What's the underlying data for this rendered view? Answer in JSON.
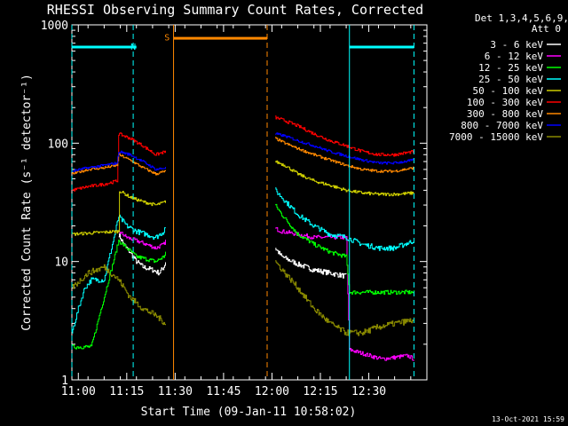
{
  "chart_data": {
    "type": "line",
    "title": "RHESSI Observing Summary Count Rates, Corrected",
    "xlabel": "Start Time (09-Jan-11 10:58:02)",
    "ylabel": "Corrected Count Rate (s⁻¹ detector⁻¹)",
    "y_scale": "log",
    "ylim": [
      1,
      1000
    ],
    "xlim_minutes_after_10_58_02": [
      0,
      110
    ],
    "x_ticks": [
      {
        "label": "11:00",
        "t": 2
      },
      {
        "label": "11:15",
        "t": 17
      },
      {
        "label": "11:30",
        "t": 32
      },
      {
        "label": "11:45",
        "t": 47
      },
      {
        "label": "12:00",
        "t": 62
      },
      {
        "label": "12:15",
        "t": 77
      },
      {
        "label": "12:30",
        "t": 92
      }
    ],
    "y_ticks": [
      {
        "label": "1",
        "v": 1
      },
      {
        "label": "10",
        "v": 10
      },
      {
        "label": "100",
        "v": 100
      },
      {
        "label": "1000",
        "v": 1000
      }
    ],
    "legend_header": [
      "Det 1,3,4,5,6,9,",
      "Att 0"
    ],
    "legend_position": "outside-right",
    "series": [
      {
        "name": "3 - 6 keV",
        "color": "#ffffff",
        "noise": 0.05,
        "points": [
          [
            14.5,
            17
          ],
          [
            16,
            14
          ],
          [
            18,
            12
          ],
          [
            20,
            10
          ],
          [
            22,
            9
          ],
          [
            25,
            8.5
          ],
          [
            27,
            8
          ],
          [
            28.5,
            9
          ],
          [
            29,
            10
          ]
        ],
        "points2": [
          [
            63,
            13
          ],
          [
            65,
            11
          ],
          [
            70,
            9.5
          ],
          [
            75,
            8.5
          ],
          [
            80,
            8
          ],
          [
            85,
            7.5
          ]
        ]
      },
      {
        "name": "6 - 12 keV",
        "color": "#ff00ff",
        "noise": 0.04,
        "points": [
          [
            14.5,
            18
          ],
          [
            17,
            16
          ],
          [
            20,
            15
          ],
          [
            23,
            14
          ],
          [
            26,
            13
          ],
          [
            28.5,
            14
          ],
          [
            29,
            15
          ]
        ],
        "points2": [
          [
            63,
            19
          ],
          [
            65,
            18
          ],
          [
            70,
            17
          ],
          [
            75,
            16
          ],
          [
            80,
            16
          ],
          [
            85,
            16
          ],
          [
            86,
            1.8
          ],
          [
            96,
            1.5
          ],
          [
            104,
            1.6
          ],
          [
            106,
            1.5
          ]
        ]
      },
      {
        "name": "12 - 25 keV",
        "color": "#00ff00",
        "noise": 0.04,
        "points": [
          [
            0,
            1.9
          ],
          [
            6,
            1.9
          ],
          [
            14.5,
            15
          ],
          [
            17,
            13
          ],
          [
            20,
            11
          ],
          [
            23,
            10.5
          ],
          [
            26,
            10
          ],
          [
            28.5,
            11
          ],
          [
            29,
            12
          ]
        ],
        "points2": [
          [
            63,
            30
          ],
          [
            65,
            25
          ],
          [
            70,
            17
          ],
          [
            75,
            14
          ],
          [
            80,
            12
          ],
          [
            85,
            11
          ],
          [
            86,
            5.5
          ],
          [
            96,
            5.5
          ],
          [
            106,
            5.5
          ]
        ]
      },
      {
        "name": "25 - 50 keV",
        "color": "#00ffff",
        "noise": 0.05,
        "points": [
          [
            0,
            2.5
          ],
          [
            2,
            4
          ],
          [
            4,
            6
          ],
          [
            6,
            7
          ],
          [
            10,
            7
          ],
          [
            14.5,
            24
          ],
          [
            17,
            20
          ],
          [
            20,
            18
          ],
          [
            23,
            17
          ],
          [
            26,
            16
          ],
          [
            28.5,
            18
          ],
          [
            29,
            20
          ]
        ],
        "points2": [
          [
            63,
            40
          ],
          [
            65,
            35
          ],
          [
            70,
            25
          ],
          [
            75,
            20
          ],
          [
            80,
            17
          ],
          [
            85,
            16
          ],
          [
            90,
            14
          ],
          [
            95,
            13
          ],
          [
            100,
            13
          ],
          [
            106,
            15
          ]
        ],
        "flat": [
          [
            0,
            650
          ],
          [
            20,
            650
          ],
          [
            86,
            650
          ],
          [
            106,
            650
          ]
        ]
      },
      {
        "name": "50 - 100 keV",
        "color": "#cccc00",
        "noise": 0.03,
        "points": [
          [
            0,
            17
          ],
          [
            14.5,
            18
          ],
          [
            14.5,
            40
          ],
          [
            18,
            35
          ],
          [
            22,
            32
          ],
          [
            26,
            30
          ],
          [
            29,
            32
          ]
        ],
        "points2": [
          [
            63,
            70
          ],
          [
            66,
            65
          ],
          [
            70,
            55
          ],
          [
            75,
            48
          ],
          [
            80,
            44
          ],
          [
            85,
            40
          ],
          [
            90,
            38
          ],
          [
            95,
            37
          ],
          [
            100,
            37
          ],
          [
            106,
            38
          ]
        ]
      },
      {
        "name": "100 - 300 keV",
        "color": "#ff0000",
        "noise": 0.03,
        "points": [
          [
            0,
            40
          ],
          [
            5,
            43
          ],
          [
            10,
            45
          ],
          [
            14,
            48
          ],
          [
            14.5,
            120
          ],
          [
            18,
            110
          ],
          [
            22,
            95
          ],
          [
            26,
            80
          ],
          [
            29,
            85
          ]
        ],
        "points2": [
          [
            63,
            165
          ],
          [
            66,
            155
          ],
          [
            70,
            140
          ],
          [
            75,
            120
          ],
          [
            80,
            105
          ],
          [
            85,
            95
          ],
          [
            90,
            85
          ],
          [
            95,
            80
          ],
          [
            100,
            80
          ],
          [
            106,
            85
          ]
        ]
      },
      {
        "name": "300 - 800 keV",
        "color": "#ff8800",
        "noise": 0.025,
        "points": [
          [
            0,
            55
          ],
          [
            5,
            60
          ],
          [
            10,
            62
          ],
          [
            14,
            65
          ],
          [
            14.5,
            80
          ],
          [
            18,
            72
          ],
          [
            22,
            62
          ],
          [
            26,
            55
          ],
          [
            29,
            58
          ]
        ],
        "points2": [
          [
            63,
            110
          ],
          [
            66,
            100
          ],
          [
            70,
            90
          ],
          [
            75,
            80
          ],
          [
            80,
            72
          ],
          [
            85,
            65
          ],
          [
            90,
            60
          ],
          [
            95,
            58
          ],
          [
            100,
            58
          ],
          [
            106,
            62
          ]
        ],
        "flat": [
          [
            31.5,
            770
          ],
          [
            60.5,
            770
          ]
        ]
      },
      {
        "name": "800 - 7000 keV",
        "color": "#0000ff",
        "noise": 0.025,
        "points": [
          [
            0,
            58
          ],
          [
            5,
            62
          ],
          [
            10,
            65
          ],
          [
            14,
            68
          ],
          [
            14.5,
            85
          ],
          [
            18,
            80
          ],
          [
            22,
            70
          ],
          [
            26,
            60
          ],
          [
            29,
            62
          ]
        ],
        "points2": [
          [
            63,
            120
          ],
          [
            66,
            115
          ],
          [
            70,
            105
          ],
          [
            75,
            95
          ],
          [
            80,
            85
          ],
          [
            85,
            78
          ],
          [
            90,
            72
          ],
          [
            95,
            68
          ],
          [
            100,
            68
          ],
          [
            106,
            72
          ]
        ]
      },
      {
        "name": "7000 - 15000 keV",
        "color": "#888800",
        "noise": 0.06,
        "points": [
          [
            0,
            6
          ],
          [
            5,
            8
          ],
          [
            10,
            9
          ],
          [
            14.5,
            7
          ],
          [
            18,
            5
          ],
          [
            22,
            4
          ],
          [
            26,
            3.5
          ],
          [
            29,
            3
          ]
        ],
        "points2": [
          [
            63,
            10
          ],
          [
            66,
            8
          ],
          [
            70,
            6
          ],
          [
            75,
            4
          ],
          [
            80,
            3
          ],
          [
            85,
            2.5
          ],
          [
            90,
            2.5
          ],
          [
            95,
            2.8
          ],
          [
            100,
            3
          ],
          [
            106,
            3.2
          ]
        ]
      }
    ],
    "annotations": [
      {
        "label": "N",
        "t": 19,
        "v": 650,
        "color": "#00ffff"
      },
      {
        "label": "S",
        "t": 29.5,
        "v": 780,
        "color": "#ff8800"
      }
    ],
    "markers": [
      {
        "t": 0,
        "color": "#00ffff",
        "style": "dashed"
      },
      {
        "t": 19,
        "color": "#00ffff",
        "style": "dashed"
      },
      {
        "t": 31.5,
        "color": "#ff8800",
        "style": "solid"
      },
      {
        "t": 60.5,
        "color": "#ff8800",
        "style": "dashed"
      },
      {
        "t": 86,
        "color": "#00ffff",
        "style": "solid"
      },
      {
        "t": 106,
        "color": "#00ffff",
        "style": "dashed"
      }
    ],
    "footer_date": "13-Oct-2021 15:59"
  }
}
